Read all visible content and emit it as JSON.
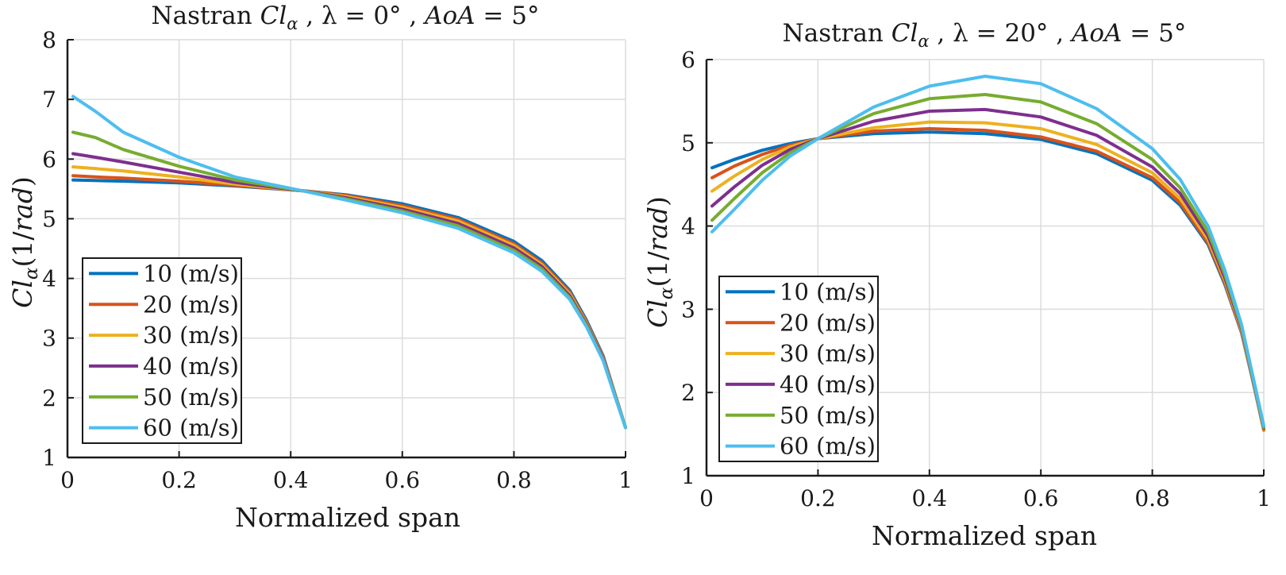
{
  "colors": {
    "10 (m/s)": "#0072BD",
    "20 (m/s)": "#D95319",
    "30 (m/s)": "#EDB120",
    "40 (m/s)": "#7E2F8E",
    "50 (m/s)": "#77AC30",
    "60 (m/s)": "#4DBEEE",
    "grid": "#dcdcdc",
    "axis": "#1a1a1a"
  },
  "chart_data": [
    {
      "type": "line",
      "title": "Nastran Clα , λ = 0° , AoA = 5°",
      "title_parts": {
        "prefix": "Nastran ",
        "cl": "Cl",
        "sub": "α",
        "sep1": " , λ = 0° , ",
        "aoa": "AoA",
        "suffix": " = 5°"
      },
      "xlabel": "Normalized span",
      "ylabel": "Clα(1/rad)",
      "ylabel_parts": {
        "cl": "Cl",
        "sub": "α",
        "unit_open": "(1/",
        "unit": "rad",
        "unit_close": ")"
      },
      "xlim": [
        0,
        1
      ],
      "ylim": [
        1,
        8
      ],
      "xticks": [
        0,
        0.2,
        0.4,
        0.6,
        0.8,
        1
      ],
      "xtick_labels": [
        "0",
        "0.2",
        "0.4",
        "0.6",
        "0.8",
        "1"
      ],
      "yticks": [
        1,
        2,
        3,
        4,
        5,
        6,
        7,
        8
      ],
      "ytick_labels": [
        "1",
        "2",
        "3",
        "4",
        "5",
        "6",
        "7",
        "8"
      ],
      "grid": true,
      "legend_position": "bottom-left",
      "x": [
        0.01,
        0.05,
        0.1,
        0.2,
        0.3,
        0.42,
        0.5,
        0.6,
        0.7,
        0.8,
        0.85,
        0.9,
        0.93,
        0.96,
        0.98,
        1.0
      ],
      "series": [
        {
          "name": "10 (m/s)",
          "values": [
            5.65,
            5.64,
            5.63,
            5.6,
            5.55,
            5.47,
            5.4,
            5.25,
            5.02,
            4.62,
            4.3,
            3.8,
            3.3,
            2.7,
            2.1,
            1.5
          ]
        },
        {
          "name": "20 (m/s)",
          "values": [
            5.72,
            5.7,
            5.68,
            5.63,
            5.56,
            5.47,
            5.39,
            5.22,
            4.99,
            4.58,
            4.26,
            3.77,
            3.27,
            2.68,
            2.09,
            1.5
          ]
        },
        {
          "name": "30 (m/s)",
          "values": [
            5.87,
            5.84,
            5.8,
            5.7,
            5.58,
            5.47,
            5.37,
            5.19,
            4.96,
            4.55,
            4.23,
            3.74,
            3.25,
            2.66,
            2.08,
            1.5
          ]
        },
        {
          "name": "40 (m/s)",
          "values": [
            6.09,
            6.03,
            5.95,
            5.78,
            5.61,
            5.47,
            5.35,
            5.16,
            4.92,
            4.51,
            4.2,
            3.71,
            3.23,
            2.65,
            2.07,
            1.5
          ]
        },
        {
          "name": "50 (m/s)",
          "values": [
            6.45,
            6.36,
            6.16,
            5.88,
            5.65,
            5.47,
            5.33,
            5.13,
            4.88,
            4.47,
            4.16,
            3.68,
            3.21,
            2.63,
            2.06,
            1.5
          ]
        },
        {
          "name": "60 (m/s)",
          "values": [
            7.05,
            6.8,
            6.45,
            6.03,
            5.7,
            5.47,
            5.31,
            5.1,
            4.84,
            4.43,
            4.12,
            3.65,
            3.19,
            2.62,
            2.05,
            1.5
          ]
        }
      ]
    },
    {
      "type": "line",
      "title": "Nastran Clα , λ = 20° , AoA = 5°",
      "title_parts": {
        "prefix": "Nastran ",
        "cl": "Cl",
        "sub": "α",
        "sep1": " , λ = 20° , ",
        "aoa": "AoA",
        "suffix": " = 5°"
      },
      "xlabel": "Normalized span",
      "ylabel": "Clα(1/rad)",
      "ylabel_parts": {
        "cl": "Cl",
        "sub": "α",
        "unit_open": "(1/",
        "unit": "rad",
        "unit_close": ")"
      },
      "xlim": [
        0,
        1
      ],
      "ylim": [
        1,
        6
      ],
      "xticks": [
        0,
        0.2,
        0.4,
        0.6,
        0.8,
        1
      ],
      "xtick_labels": [
        "0",
        "0.2",
        "0.4",
        "0.6",
        "0.8",
        "1"
      ],
      "yticks": [
        1,
        2,
        3,
        4,
        5,
        6
      ],
      "ytick_labels": [
        "1",
        "2",
        "3",
        "4",
        "5",
        "6"
      ],
      "grid": true,
      "legend_position": "bottom-left",
      "x": [
        0.01,
        0.05,
        0.1,
        0.15,
        0.2,
        0.3,
        0.4,
        0.5,
        0.6,
        0.7,
        0.8,
        0.85,
        0.9,
        0.93,
        0.96,
        0.98,
        1.0
      ],
      "series": [
        {
          "name": "10 (m/s)",
          "values": [
            4.7,
            4.8,
            4.91,
            4.99,
            5.05,
            5.11,
            5.13,
            5.11,
            5.04,
            4.87,
            4.55,
            4.25,
            3.78,
            3.3,
            2.72,
            2.15,
            1.55
          ]
        },
        {
          "name": "20 (m/s)",
          "values": [
            4.58,
            4.72,
            4.86,
            4.97,
            5.05,
            5.14,
            5.17,
            5.15,
            5.07,
            4.9,
            4.58,
            4.28,
            3.8,
            3.32,
            2.73,
            2.16,
            1.55
          ]
        },
        {
          "name": "30 (m/s)",
          "values": [
            4.42,
            4.6,
            4.8,
            4.95,
            5.05,
            5.18,
            5.25,
            5.24,
            5.17,
            4.98,
            4.64,
            4.33,
            3.84,
            3.35,
            2.75,
            2.17,
            1.56
          ]
        },
        {
          "name": "40 (m/s)",
          "values": [
            4.24,
            4.47,
            4.73,
            4.92,
            5.05,
            5.26,
            5.38,
            5.4,
            5.31,
            5.09,
            4.71,
            4.39,
            3.88,
            3.38,
            2.77,
            2.18,
            1.57
          ]
        },
        {
          "name": "50 (m/s)",
          "values": [
            4.07,
            4.33,
            4.64,
            4.88,
            5.05,
            5.35,
            5.53,
            5.58,
            5.49,
            5.23,
            4.8,
            4.46,
            3.93,
            3.42,
            2.79,
            2.19,
            1.58
          ]
        },
        {
          "name": "60 (m/s)",
          "values": [
            3.93,
            4.2,
            4.55,
            4.84,
            5.05,
            5.43,
            5.68,
            5.8,
            5.71,
            5.41,
            4.93,
            4.56,
            4.0,
            3.47,
            2.82,
            2.21,
            1.6
          ]
        }
      ]
    }
  ]
}
